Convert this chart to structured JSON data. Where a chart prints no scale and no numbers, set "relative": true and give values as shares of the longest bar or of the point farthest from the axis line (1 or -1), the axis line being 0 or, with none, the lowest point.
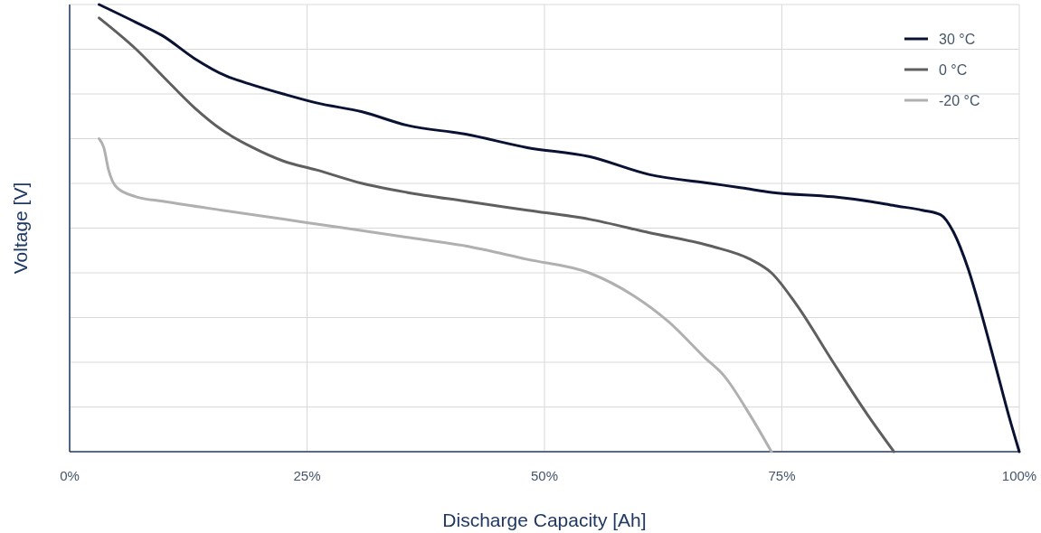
{
  "chart_data": {
    "type": "line",
    "relative": true,
    "xlabel": "Discharge Capacity [Ah]",
    "ylabel": "Voltage [V]",
    "xlim": [
      0,
      100
    ],
    "xticks": [
      {
        "value": 0,
        "label": "0%"
      },
      {
        "value": 25,
        "label": "25%"
      },
      {
        "value": 50,
        "label": "50%"
      },
      {
        "value": 75,
        "label": "75%"
      },
      {
        "value": 100,
        "label": "100%"
      }
    ],
    "grid": true,
    "legend": "top right",
    "marker": "none",
    "line_style": "solid",
    "series": [
      {
        "name": "30 °C",
        "color": "#0a1233",
        "x": [
          3.1,
          7.0,
          9.8,
          13.1,
          16.5,
          19.3,
          22.5,
          26.0,
          30.8,
          35.5,
          41.7,
          48.2,
          54.7,
          61.0,
          67.5,
          70.8,
          73.9,
          80.4,
          84.1,
          86.9,
          89.8,
          91.7,
          93.1,
          94.6,
          96.0,
          97.4,
          98.9,
          100
        ],
        "values": [
          1.0,
          0.96,
          0.93,
          0.88,
          0.84,
          0.82,
          0.8,
          0.78,
          0.76,
          0.73,
          0.71,
          0.68,
          0.66,
          0.62,
          0.6,
          0.59,
          0.58,
          0.57,
          0.56,
          0.55,
          0.54,
          0.53,
          0.49,
          0.41,
          0.31,
          0.2,
          0.08,
          0
        ]
      },
      {
        "name": "0 °C",
        "color": "#5f5f5f",
        "x": [
          3.1,
          7.0,
          9.8,
          13.1,
          16.0,
          19.3,
          22.5,
          26.0,
          30.8,
          35.5,
          41.7,
          48.2,
          54.7,
          61.0,
          67.5,
          71.7,
          73.9,
          76.5,
          80.4,
          84.1,
          86.8
        ],
        "values": [
          0.97,
          0.9,
          0.84,
          0.77,
          0.72,
          0.68,
          0.65,
          0.63,
          0.6,
          0.58,
          0.56,
          0.54,
          0.52,
          0.49,
          0.46,
          0.43,
          0.4,
          0.33,
          0.2,
          0.08,
          0
        ]
      },
      {
        "name": "-20 °C",
        "color": "#b0b0b0",
        "x": [
          3.1,
          3.6,
          4.1,
          5.0,
          7.0,
          9.8,
          16.0,
          22.5,
          29.0,
          35.4,
          41.7,
          48.2,
          54.7,
          59.3,
          63.1,
          66.9,
          68.9,
          71.7,
          73.9
        ],
        "values": [
          0.7,
          0.68,
          0.63,
          0.59,
          0.57,
          0.56,
          0.54,
          0.52,
          0.5,
          0.48,
          0.46,
          0.43,
          0.4,
          0.35,
          0.29,
          0.21,
          0.17,
          0.08,
          0
        ]
      }
    ]
  }
}
